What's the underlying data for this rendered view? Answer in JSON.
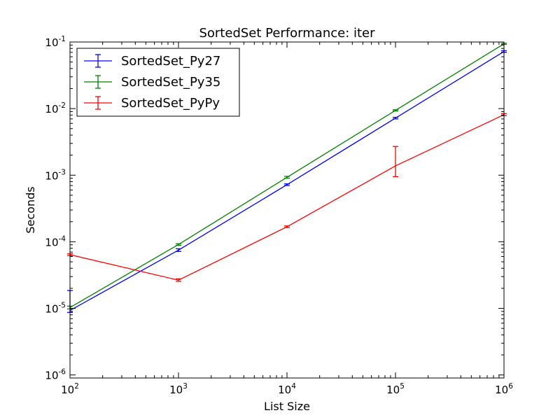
{
  "chart_data": {
    "type": "line",
    "title": "SortedSet Performance: iter",
    "xlabel": "List Size",
    "ylabel": "Seconds",
    "xscale": "log",
    "yscale": "log",
    "xlim": [
      100,
      1000000
    ],
    "ylim": [
      9e-07,
      0.1
    ],
    "x_ticks": [
      {
        "base": "10",
        "exp": "2"
      },
      {
        "base": "10",
        "exp": "3"
      },
      {
        "base": "10",
        "exp": "4"
      },
      {
        "base": "10",
        "exp": "5"
      },
      {
        "base": "10",
        "exp": "6"
      }
    ],
    "y_ticks": [
      {
        "base": "10",
        "exp": "-1"
      },
      {
        "base": "10",
        "exp": "-2"
      },
      {
        "base": "10",
        "exp": "-3"
      },
      {
        "base": "10",
        "exp": "-4"
      },
      {
        "base": "10",
        "exp": "-5"
      },
      {
        "base": "10",
        "exp": "-6"
      }
    ],
    "x_tick_values": [
      100,
      1000,
      10000,
      100000,
      1000000
    ],
    "y_tick_values": [
      0.1,
      0.01,
      0.001,
      0.0001,
      1e-05,
      1e-06
    ],
    "legend_position": "top-left",
    "grid": false,
    "x": [
      100,
      1000,
      10000,
      100000,
      1000000
    ],
    "series": [
      {
        "name": "SortedSet_Py27",
        "color": "#0000ff",
        "values": [
          9.3e-06,
          7.5e-05,
          0.00072,
          0.0072,
          0.072
        ],
        "err_low": [
          8.7e-06,
          7.15e-05,
          0.0007,
          0.007,
          0.07
        ],
        "err_high": [
          1.85e-05,
          7.85e-05,
          0.00074,
          0.0074,
          0.074
        ]
      },
      {
        "name": "SortedSet_Py35",
        "color": "#008000",
        "values": [
          1.03e-05,
          9.1e-05,
          0.00093,
          0.0094,
          0.094
        ],
        "err_low": [
          9.8e-06,
          8.85e-05,
          0.0009,
          0.0092,
          0.092
        ],
        "err_high": [
          1.08e-05,
          9.35e-05,
          0.00096,
          0.0096,
          0.096
        ]
      },
      {
        "name": "SortedSet_PyPy",
        "color": "#ff0000",
        "values": [
          6.4e-05,
          2.65e-05,
          0.000168,
          0.00138,
          0.0081
        ],
        "err_low": [
          6.2e-05,
          2.55e-05,
          0.000163,
          0.00095,
          0.0078
        ],
        "err_high": [
          6.6e-05,
          2.78e-05,
          0.000173,
          0.0027,
          0.0084
        ]
      }
    ]
  }
}
